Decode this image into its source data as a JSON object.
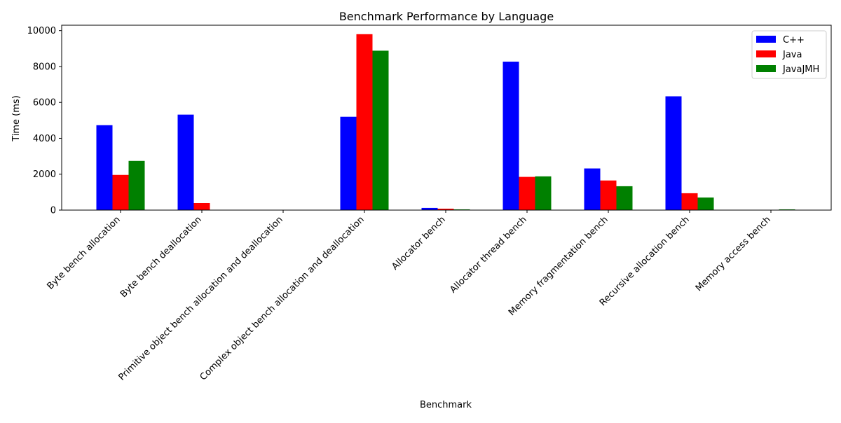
{
  "chart_data": {
    "type": "bar",
    "title": "Benchmark Performance by Language",
    "xlabel": "Benchmark",
    "ylabel": "Time (ms)",
    "ylim": [
      0,
      10300
    ],
    "yticks": [
      0,
      2000,
      4000,
      6000,
      8000,
      10000
    ],
    "grid": false,
    "legend_position": "top-right",
    "categories": [
      "Byte bench allocation",
      "Byte bench deallocation",
      "Primitive object bench allocation and deallocation",
      "Complex object bench allocation and deallocation",
      "Allocator bench",
      "Allocator thread bench",
      "Memory fragmentation bench",
      "Recursive allocation bench",
      "Memory access bench"
    ],
    "series": [
      {
        "name": "C++",
        "color": "#0000ff",
        "values": [
          4730,
          5320,
          0,
          5200,
          120,
          8270,
          2320,
          6340,
          0
        ]
      },
      {
        "name": "Java",
        "color": "#ff0000",
        "values": [
          1960,
          390,
          0,
          9800,
          80,
          1850,
          1650,
          940,
          0
        ]
      },
      {
        "name": "JavaJMH",
        "color": "#008000",
        "values": [
          2740,
          0,
          0,
          8880,
          40,
          1880,
          1330,
          700,
          40
        ]
      }
    ]
  }
}
